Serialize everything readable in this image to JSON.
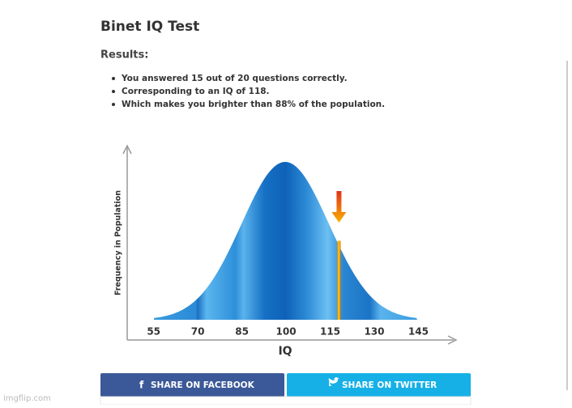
{
  "header": {
    "title": "Binet IQ Test",
    "subtitle": "Results:"
  },
  "results": [
    "You answered 15 out of 20 questions correctly.",
    "Corresponding to an IQ of 118.",
    "Which makes you brighter than 88% of the population."
  ],
  "chart_data": {
    "type": "bell-curve",
    "x_label": "IQ",
    "y_label": "Frequency in Population",
    "xlim": [
      46,
      157
    ],
    "xticks": [
      55,
      70,
      85,
      100,
      115,
      130,
      145
    ],
    "marker": 118
  },
  "buttons": [
    "SHARE ON FACEBOOK",
    "SHARE ON TWITTER"
  ],
  "watermark": "imgflip.com"
}
